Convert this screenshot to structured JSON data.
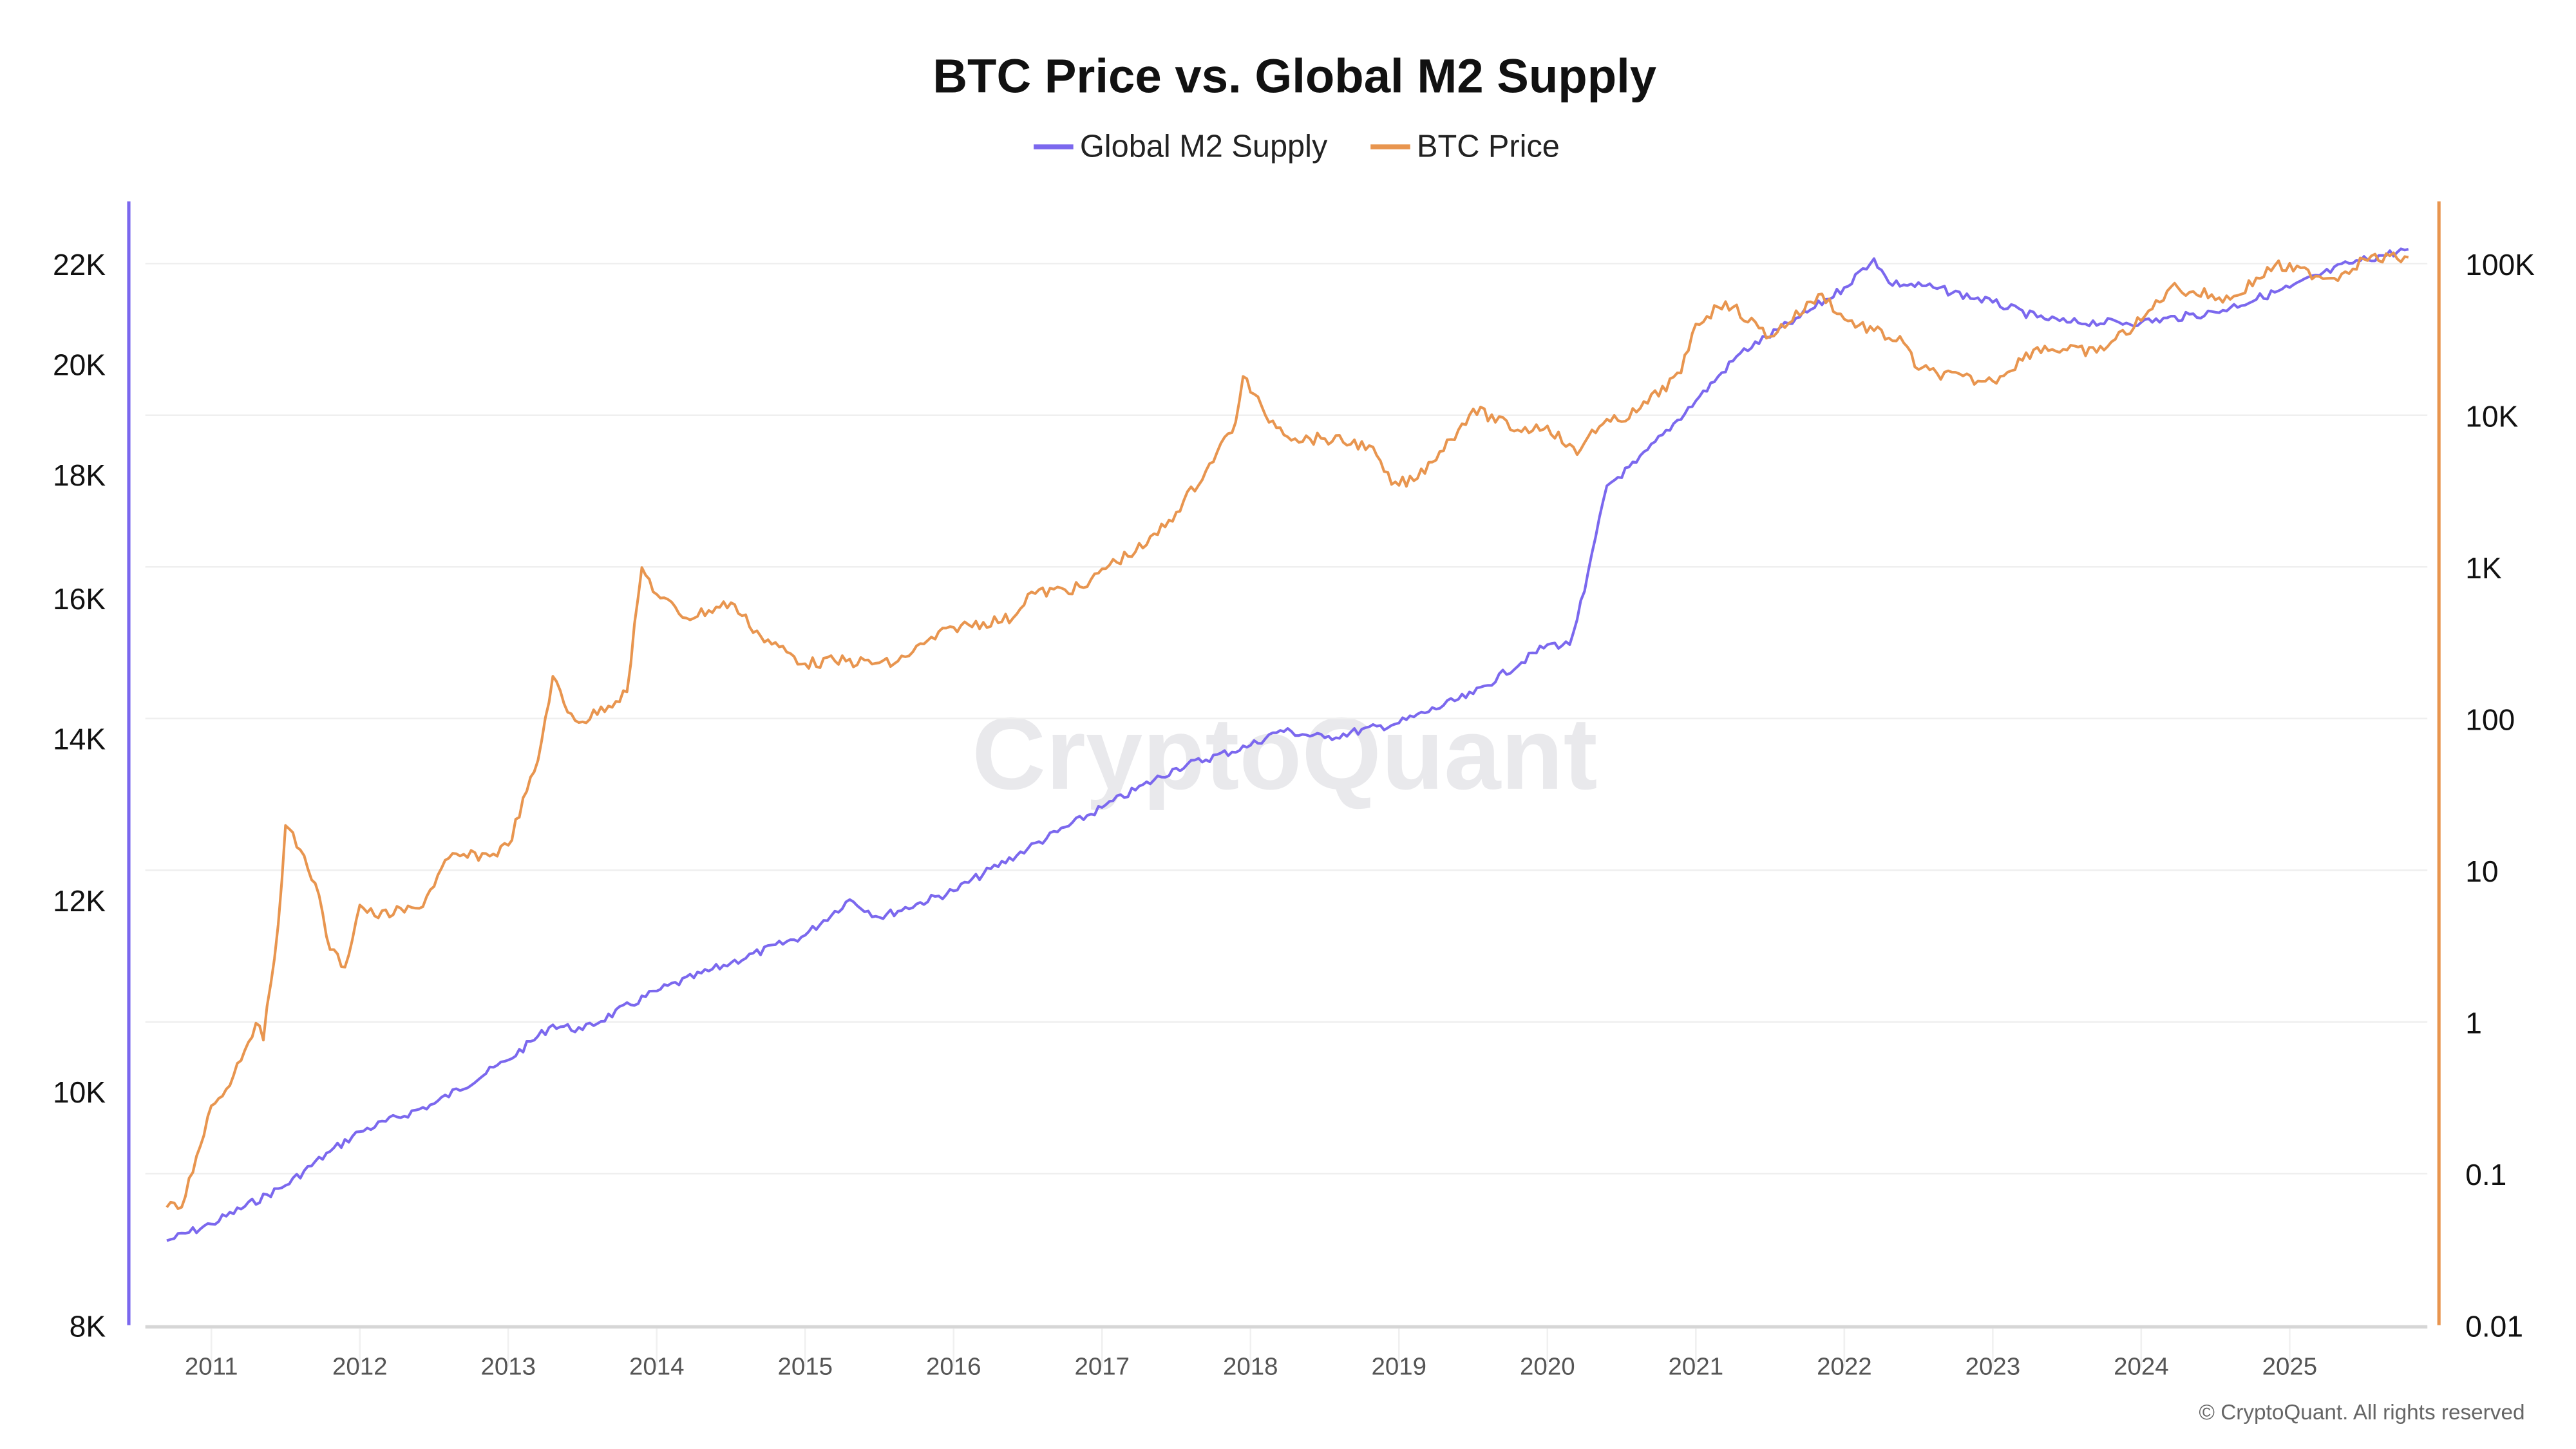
{
  "chart_data": {
    "type": "line",
    "title": "BTC Price vs. Global M2 Supply",
    "legend": {
      "placement": "top-center",
      "entries": [
        "Global M2 Supply",
        "BTC Price"
      ]
    },
    "watermark": "CryptoQuant",
    "credit": "© CryptoQuant. All rights reserved",
    "grid": true,
    "x_axis": {
      "ticks": [
        "2011",
        "2012",
        "2013",
        "2014",
        "2015",
        "2016",
        "2017",
        "2018",
        "2019",
        "2020",
        "2021",
        "2022",
        "2023",
        "2024",
        "2025"
      ],
      "range": [
        2010.45,
        2026.0
      ]
    },
    "y_left": {
      "scale": "log",
      "range": [
        8000,
        23000
      ],
      "ticks": [
        8000,
        10000,
        12000,
        14000,
        16000,
        18000,
        20000,
        22000
      ],
      "tick_labels": [
        "8K",
        "10K",
        "12K",
        "14K",
        "16K",
        "18K",
        "20K",
        "22K"
      ],
      "color": "#7b68ee"
    },
    "y_right": {
      "scale": "log",
      "range": [
        0.01,
        250000
      ],
      "ticks": [
        0.01,
        0.1,
        1,
        10,
        100,
        1000,
        10000,
        100000
      ],
      "tick_labels": [
        "0.01",
        "0.1",
        "1",
        "10",
        "100",
        "1K",
        "10K",
        "100K"
      ],
      "color": "#e8954f"
    },
    "series": [
      {
        "name": "Global M2 Supply",
        "axis": "left",
        "color": "#7b68ee",
        "x": [
          2010.7,
          2011.0,
          2011.5,
          2011.8,
          2012.0,
          2012.5,
          2013.0,
          2013.3,
          2013.5,
          2014.0,
          2014.5,
          2015.0,
          2015.3,
          2015.5,
          2016.0,
          2016.5,
          2017.0,
          2017.5,
          2018.0,
          2018.2,
          2018.5,
          2019.0,
          2019.5,
          2020.0,
          2020.15,
          2020.25,
          2020.4,
          2020.6,
          2021.0,
          2021.3,
          2021.7,
          2022.0,
          2022.2,
          2022.3,
          2022.6,
          2023.0,
          2023.3,
          2023.5,
          2024.0,
          2024.5,
          2025.0,
          2025.4,
          2025.8
        ],
        "y": [
          8670,
          8810,
          9140,
          9440,
          9620,
          9880,
          10300,
          10650,
          10600,
          11000,
          11300,
          11600,
          12000,
          11800,
          12100,
          12600,
          13100,
          13600,
          13900,
          14100,
          14000,
          14200,
          14600,
          15300,
          15300,
          16100,
          17800,
          18200,
          19300,
          20200,
          20900,
          21500,
          22100,
          21600,
          21500,
          21200,
          20900,
          20800,
          20800,
          21000,
          21500,
          22000,
          22300
        ]
      },
      {
        "name": "BTC Price",
        "axis": "right",
        "color": "#e8954f",
        "x": [
          2010.7,
          2010.8,
          2010.9,
          2011.0,
          2011.1,
          2011.3,
          2011.35,
          2011.45,
          2011.5,
          2011.6,
          2011.7,
          2011.8,
          2011.9,
          2012.0,
          2012.1,
          2012.4,
          2012.6,
          2012.9,
          2013.0,
          2013.2,
          2013.3,
          2013.4,
          2013.5,
          2013.8,
          2013.9,
          2014.0,
          2014.2,
          2014.5,
          2014.7,
          2015.0,
          2015.2,
          2015.6,
          2015.8,
          2016.0,
          2016.4,
          2016.5,
          2016.9,
          2017.0,
          2017.3,
          2017.5,
          2017.7,
          2017.9,
          2017.95,
          2018.1,
          2018.3,
          2018.5,
          2018.8,
          2018.95,
          2019.1,
          2019.4,
          2019.5,
          2019.8,
          2020.0,
          2020.2,
          2020.3,
          2020.6,
          2020.9,
          2021.0,
          2021.2,
          2021.5,
          2021.85,
          2022.0,
          2022.4,
          2022.5,
          2022.9,
          2023.0,
          2023.3,
          2023.7,
          2024.0,
          2024.2,
          2024.6,
          2024.9,
          2025.3,
          2025.5,
          2025.8
        ],
        "y": [
          0.06,
          0.06,
          0.13,
          0.28,
          0.36,
          0.98,
          0.76,
          4.4,
          19.7,
          13.6,
          8.2,
          3.0,
          2.3,
          5.9,
          5,
          5.6,
          12,
          12.8,
          14.6,
          53,
          190,
          110,
          95,
          150,
          990,
          660,
          460,
          580,
          350,
          230,
          240,
          230,
          310,
          400,
          460,
          660,
          740,
          970,
          1400,
          2300,
          4300,
          9000,
          18000,
          10000,
          7000,
          7000,
          6300,
          3500,
          3700,
          8000,
          11000,
          8000,
          8500,
          5500,
          8000,
          10500,
          19000,
          40000,
          56000,
          33000,
          63000,
          43000,
          30000,
          20000,
          16800,
          16800,
          28000,
          26000,
          42000,
          70000,
          58000,
          97000,
          80000,
          107000,
          110000
        ]
      }
    ]
  }
}
